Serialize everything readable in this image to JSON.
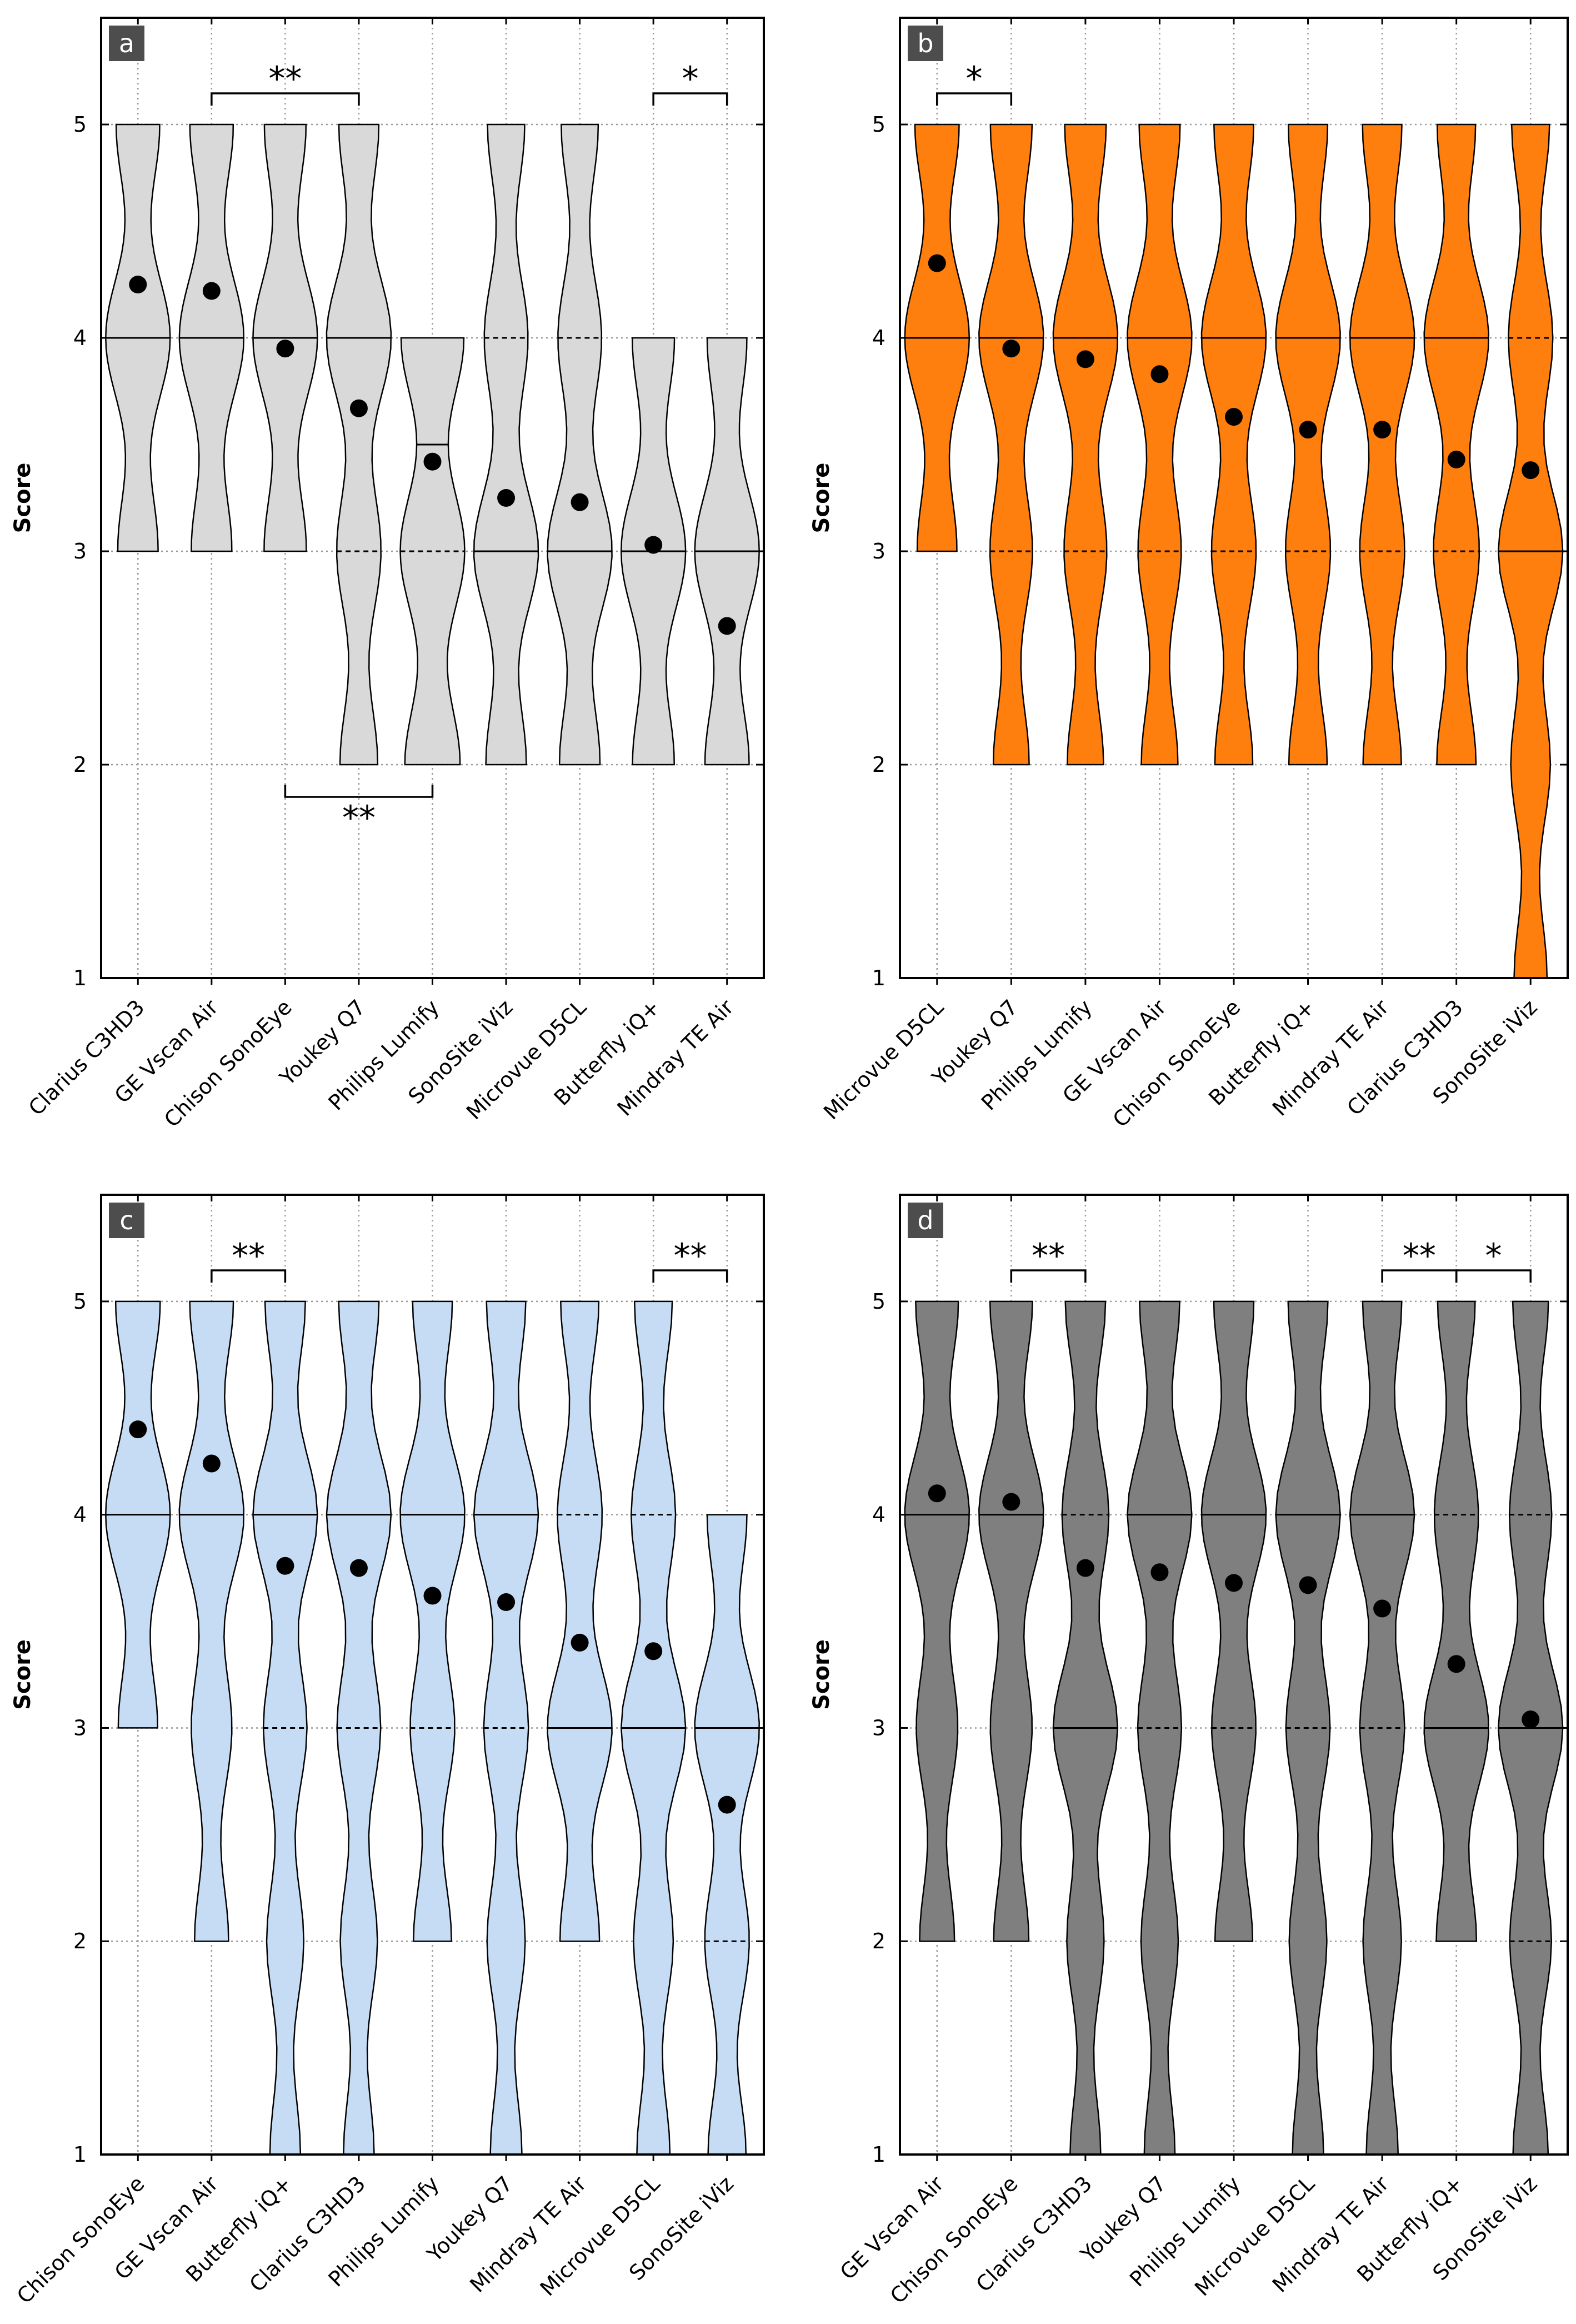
{
  "y_axis_label": "Score",
  "chart_data": [
    {
      "panel": "a",
      "type": "violin",
      "color": "#d9d9d9",
      "ylabel": "Score",
      "ylim": [
        1,
        5.5
      ],
      "yticks": [
        "1",
        "2",
        "3",
        "4",
        "5"
      ],
      "categories": [
        "Clarius C3HD3",
        "GE Vscan Air",
        "Chison SonoEye",
        "Youkey Q7",
        "Philips Lumify",
        "SonoSite iViz",
        "Microvue D5CL",
        "Butterfly iQ+",
        "Mindray TE Air"
      ],
      "mean": [
        4.25,
        4.22,
        3.95,
        3.67,
        3.42,
        3.25,
        3.23,
        3.03,
        2.65
      ],
      "median": [
        4,
        4,
        4,
        4,
        3.5,
        3,
        3,
        3,
        3
      ],
      "range": [
        [
          3,
          5
        ],
        [
          3,
          5
        ],
        [
          3,
          5
        ],
        [
          2,
          5
        ],
        [
          2,
          4
        ],
        [
          2,
          5
        ],
        [
          2,
          5
        ],
        [
          2,
          4
        ],
        [
          2,
          4
        ]
      ],
      "significance": [
        {
          "from": "GE Vscan Air",
          "to": "Youkey Q7",
          "label": "**",
          "position": "above"
        },
        {
          "from": "Butterfly iQ+",
          "to": "Mindray TE Air",
          "label": "*",
          "position": "above"
        },
        {
          "from": "Chison SonoEye",
          "to": "Philips Lumify",
          "label": "**",
          "position": "below"
        }
      ]
    },
    {
      "panel": "b",
      "type": "violin",
      "color": "#ff7f0e",
      "ylabel": "Score",
      "ylim": [
        1,
        5.5
      ],
      "yticks": [
        "1",
        "2",
        "3",
        "4",
        "5"
      ],
      "categories": [
        "Microvue D5CL",
        "Youkey Q7",
        "Philips Lumify",
        "GE Vscan Air",
        "Chison SonoEye",
        "Butterfly iQ+",
        "Mindray TE Air",
        "Clarius C3HD3",
        "SonoSite iViz"
      ],
      "mean": [
        4.35,
        3.95,
        3.9,
        3.83,
        3.63,
        3.57,
        3.57,
        3.43,
        3.38
      ],
      "median": [
        4,
        4,
        4,
        4,
        4,
        4,
        4,
        4,
        3
      ],
      "range": [
        [
          3,
          5
        ],
        [
          2,
          5
        ],
        [
          2,
          5
        ],
        [
          2,
          5
        ],
        [
          2,
          5
        ],
        [
          2,
          5
        ],
        [
          2,
          5
        ],
        [
          2,
          5
        ],
        [
          1,
          5
        ]
      ],
      "significance": [
        {
          "from": "Microvue D5CL",
          "to": "Youkey Q7",
          "label": "*",
          "position": "above"
        }
      ]
    },
    {
      "panel": "c",
      "type": "violin",
      "color": "#c6dbf4",
      "ylabel": "Score",
      "ylim": [
        1,
        5.5
      ],
      "yticks": [
        "1",
        "2",
        "3",
        "4",
        "5"
      ],
      "categories": [
        "Chison SonoEye",
        "GE Vscan Air",
        "Butterfly iQ+",
        "Clarius C3HD3",
        "Philips Lumify",
        "Youkey Q7",
        "Mindray TE Air",
        "Microvue D5CL",
        "SonoSite iViz"
      ],
      "mean": [
        4.4,
        4.24,
        3.76,
        3.75,
        3.62,
        3.59,
        3.4,
        3.36,
        2.64
      ],
      "median": [
        4,
        4,
        4,
        4,
        4,
        4,
        3,
        3,
        3
      ],
      "range": [
        [
          3,
          5
        ],
        [
          2,
          5
        ],
        [
          1,
          5
        ],
        [
          1,
          5
        ],
        [
          2,
          5
        ],
        [
          1,
          5
        ],
        [
          2,
          5
        ],
        [
          1,
          5
        ],
        [
          1,
          4
        ]
      ],
      "significance": [
        {
          "from": "GE Vscan Air",
          "to": "Butterfly iQ+",
          "label": "**",
          "position": "above"
        },
        {
          "from": "Microvue D5CL",
          "to": "SonoSite iViz",
          "label": "**",
          "position": "above"
        }
      ]
    },
    {
      "panel": "d",
      "type": "violin",
      "color": "#7f7f7f",
      "ylabel": "Score",
      "ylim": [
        1,
        5.5
      ],
      "yticks": [
        "1",
        "2",
        "3",
        "4",
        "5"
      ],
      "categories": [
        "GE Vscan Air",
        "Chison SonoEye",
        "Clarius C3HD3",
        "Youkey Q7",
        "Philips Lumify",
        "Microvue D5CL",
        "Mindray TE Air",
        "Butterfly iQ+",
        "SonoSite iViz"
      ],
      "mean": [
        4.1,
        4.06,
        3.75,
        3.73,
        3.68,
        3.67,
        3.56,
        3.3,
        3.04
      ],
      "median": [
        4,
        4,
        3,
        4,
        4,
        4,
        4,
        3,
        3
      ],
      "range": [
        [
          2,
          5
        ],
        [
          2,
          5
        ],
        [
          1,
          5
        ],
        [
          1,
          5
        ],
        [
          2,
          5
        ],
        [
          1,
          5
        ],
        [
          1,
          5
        ],
        [
          2,
          5
        ],
        [
          1,
          5
        ]
      ],
      "significance": [
        {
          "from": "Chison SonoEye",
          "to": "Clarius C3HD3",
          "label": "**",
          "position": "above"
        },
        {
          "from": "Mindray TE Air",
          "to": "Butterfly iQ+",
          "label": "**",
          "position": "above"
        },
        {
          "from": "Butterfly iQ+",
          "to": "SonoSite iViz",
          "label": "*",
          "position": "above"
        }
      ]
    }
  ]
}
